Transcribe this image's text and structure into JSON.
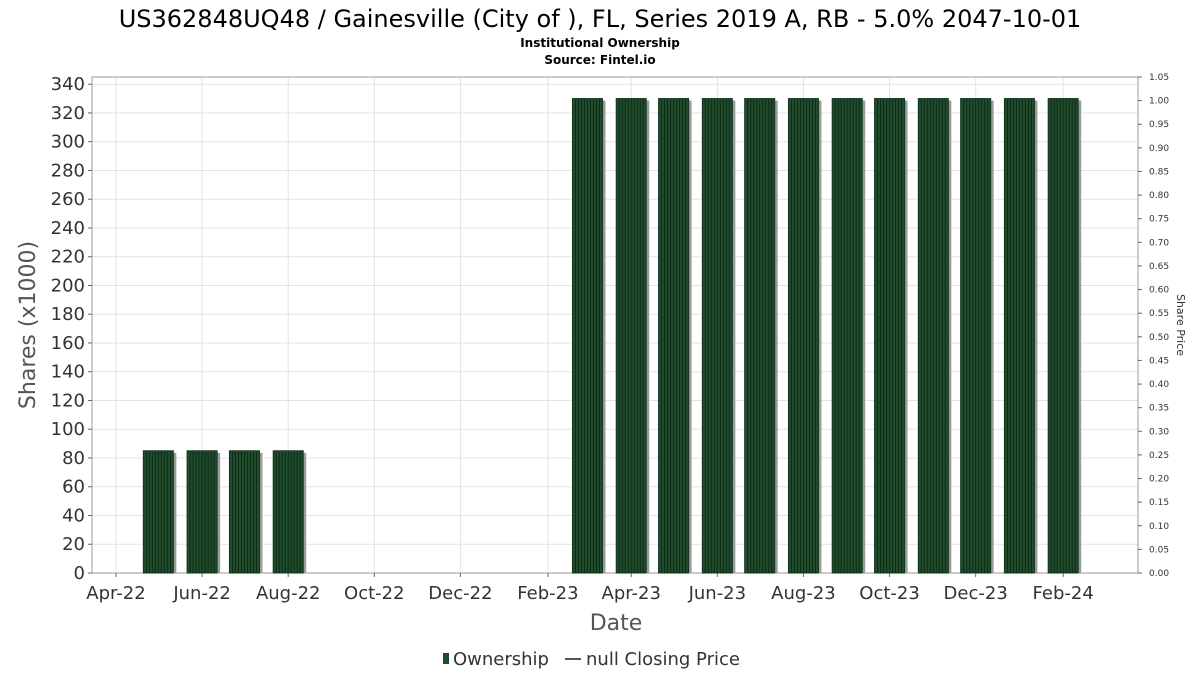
{
  "chart_data": {
    "type": "bar",
    "title": "US362848UQ48 / Gainesville (City of ), FL, Series 2019 A, RB - 5.0% 2047-10-01",
    "subtitle_lines": [
      "Institutional Ownership",
      "Source: Fintel.io"
    ],
    "xlabel": "Date",
    "ylabel": "Shares (x1000)",
    "y2label": "Share Price",
    "x_start": "2022-03-15",
    "x_end": "2024-03-25",
    "ylim": [
      0,
      345
    ],
    "y_ticks": [
      0,
      20,
      40,
      60,
      80,
      100,
      120,
      140,
      160,
      180,
      200,
      220,
      240,
      260,
      280,
      300,
      320,
      340
    ],
    "y2lim": [
      0,
      1.05
    ],
    "y2_ticks": [
      "0.00",
      "0.05",
      "0.10",
      "0.15",
      "0.20",
      "0.25",
      "0.30",
      "0.35",
      "0.40",
      "0.45",
      "0.50",
      "0.55",
      "0.60",
      "0.65",
      "0.70",
      "0.75",
      "0.80",
      "0.85",
      "0.90",
      "0.95",
      "1.00",
      "1.05"
    ],
    "x_ticks": [
      {
        "label": "Apr-22",
        "date": "2022-04-01"
      },
      {
        "label": "Jun-22",
        "date": "2022-06-01"
      },
      {
        "label": "Aug-22",
        "date": "2022-08-01"
      },
      {
        "label": "Oct-22",
        "date": "2022-10-01"
      },
      {
        "label": "Dec-22",
        "date": "2022-12-01"
      },
      {
        "label": "Feb-23",
        "date": "2023-02-01"
      },
      {
        "label": "Apr-23",
        "date": "2023-04-01"
      },
      {
        "label": "Jun-23",
        "date": "2023-06-01"
      },
      {
        "label": "Aug-23",
        "date": "2023-08-01"
      },
      {
        "label": "Oct-23",
        "date": "2023-10-01"
      },
      {
        "label": "Dec-23",
        "date": "2023-12-01"
      },
      {
        "label": "Feb-24",
        "date": "2024-02-01"
      }
    ],
    "grid": true,
    "legend_position": "bottom-center",
    "series": [
      {
        "name": "Ownership",
        "color": "#1f4d2b",
        "points": [
          {
            "date": "2022-05-01",
            "value": 85
          },
          {
            "date": "2022-06-01",
            "value": 85
          },
          {
            "date": "2022-07-01",
            "value": 85
          },
          {
            "date": "2022-08-01",
            "value": 85
          },
          {
            "date": "2023-03-01",
            "value": 330
          },
          {
            "date": "2023-04-01",
            "value": 330
          },
          {
            "date": "2023-05-01",
            "value": 330
          },
          {
            "date": "2023-06-01",
            "value": 330
          },
          {
            "date": "2023-07-01",
            "value": 330
          },
          {
            "date": "2023-08-01",
            "value": 330
          },
          {
            "date": "2023-09-01",
            "value": 330
          },
          {
            "date": "2023-10-01",
            "value": 330
          },
          {
            "date": "2023-11-01",
            "value": 330
          },
          {
            "date": "2023-12-01",
            "value": 330
          },
          {
            "date": "2024-01-01",
            "value": 330
          },
          {
            "date": "2024-02-01",
            "value": 330
          }
        ]
      }
    ],
    "legend": [
      "Ownership",
      "null Closing Price"
    ]
  }
}
